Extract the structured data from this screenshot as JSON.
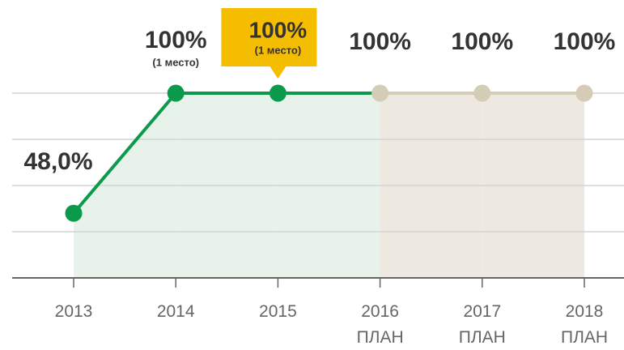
{
  "chart_data": {
    "type": "line",
    "categories": [
      "2013",
      "2014",
      "2015",
      "2016\nПЛАН",
      "2017\nПЛАН",
      "2018\nПЛАН"
    ],
    "values": [
      48,
      100,
      100,
      100,
      100,
      100
    ],
    "value_labels": [
      "48,0%",
      "100%",
      "100%",
      "100%",
      "100%",
      "100%"
    ],
    "value_notes": [
      null,
      "(1 место)",
      "(1 место)",
      null,
      null,
      null
    ],
    "highlight": 2,
    "highlight_color": "#f5bd00",
    "point_colors": [
      "#0b9a4b",
      "#0b9a4b",
      "#0b9a4b",
      "#d5ccb6",
      "#d5ccb6",
      "#d5ccb6"
    ],
    "area_colors": [
      "#e6f2ea",
      "#e6f2ea",
      "#e6f2ea",
      "#ede9e0",
      "#ede9e0"
    ],
    "ylim": [
      20,
      100
    ],
    "yticks": [
      20,
      40,
      60,
      80,
      100
    ],
    "grid": true
  }
}
